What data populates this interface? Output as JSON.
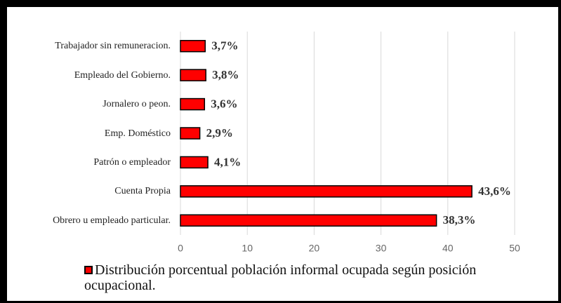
{
  "chart_data": {
    "type": "bar",
    "orientation": "horizontal",
    "categories": [
      "Trabajador sin remuneracion.",
      "Empleado del Gobierno.",
      "Jornalero o peon.",
      "Emp. Doméstico",
      "Patrón o empleador",
      "Cuenta Propia",
      "Obrero u empleado particular."
    ],
    "series": [
      {
        "name": "Distribución porcentual población informal ocupada según posición ocupacional.",
        "color": "#ff0000",
        "values": [
          3.7,
          3.8,
          3.6,
          2.9,
          4.1,
          43.6,
          38.3
        ],
        "value_labels": [
          "3,7%",
          "3,8%",
          "3,6%",
          "2,9%",
          "4,1%",
          "43,6%",
          "38,3%"
        ]
      }
    ],
    "xlim": [
      0,
      50
    ],
    "xticks": [
      0,
      10,
      20,
      30,
      40,
      50
    ],
    "grid": true,
    "legend": "bottom"
  }
}
